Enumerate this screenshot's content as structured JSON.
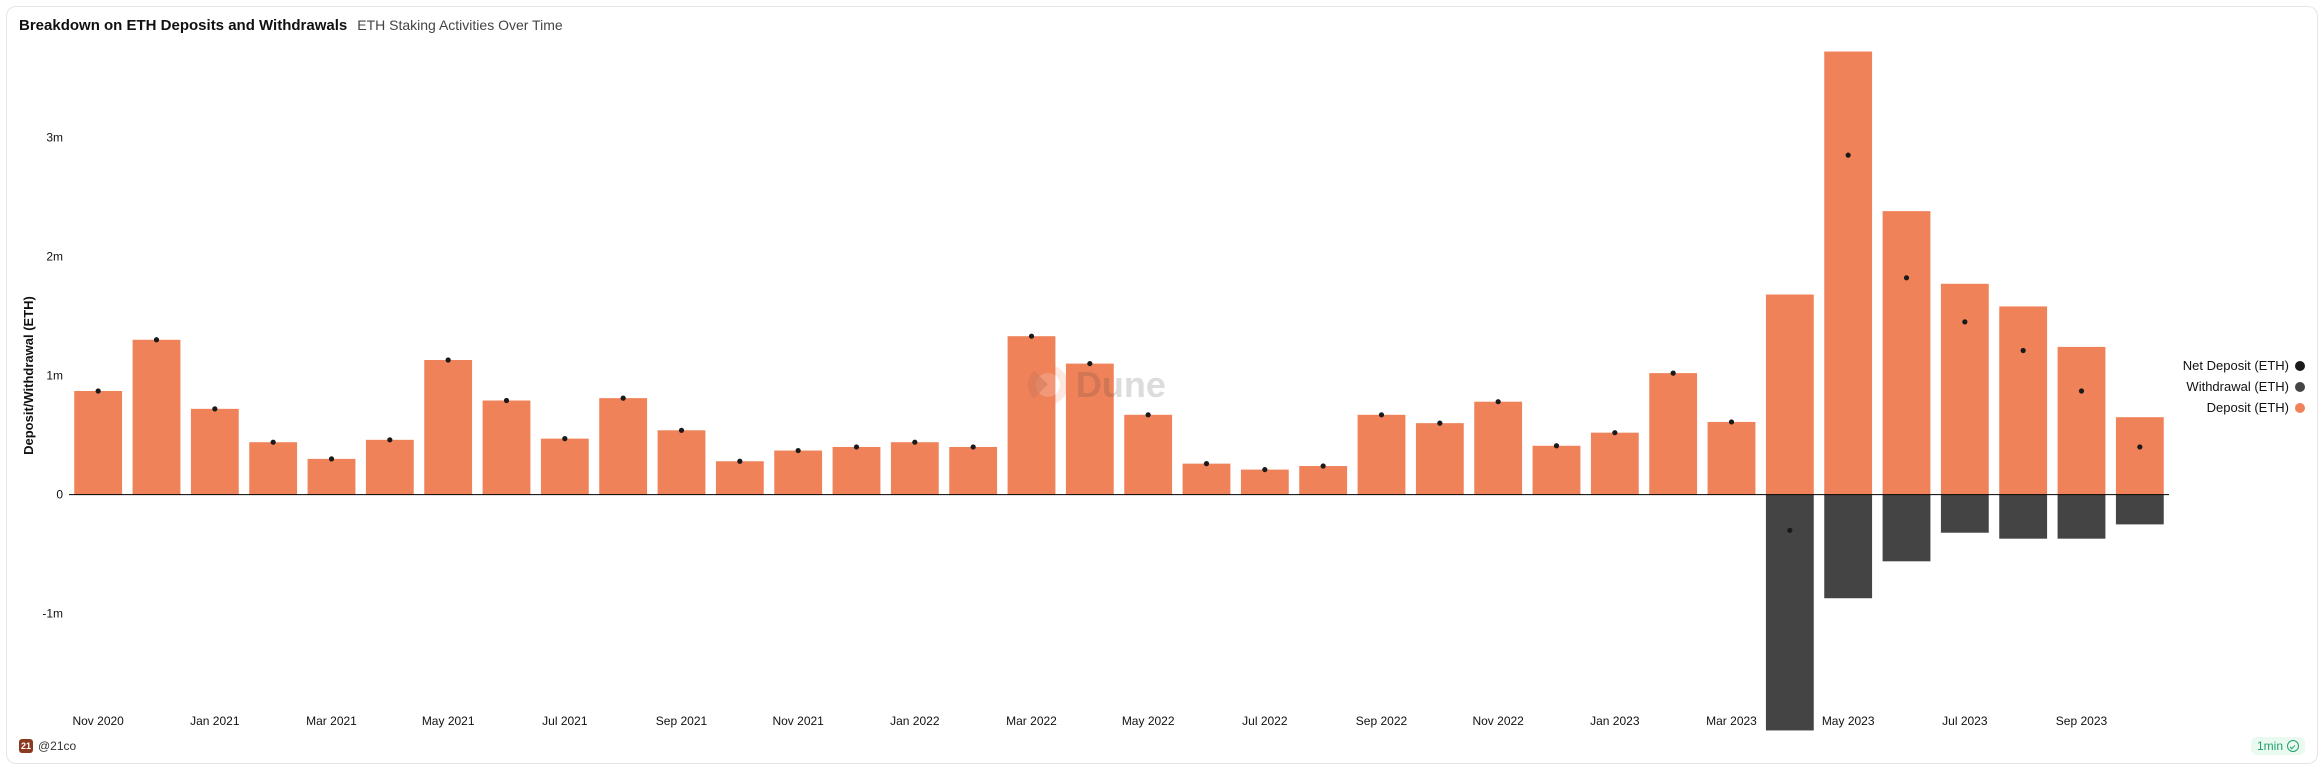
{
  "header": {
    "title": "Breakdown on ETH Deposits and Withdrawals",
    "subtitle": "ETH Staking Activities Over Time"
  },
  "footer": {
    "author_handle": "@21co",
    "author_badge": "21",
    "refresh_label": "1min"
  },
  "watermark": {
    "text": "Dune"
  },
  "legend": {
    "items": [
      {
        "label": "Net Deposit (ETH)",
        "color": "#1a1a1a",
        "shape": "circle"
      },
      {
        "label": "Withdrawal (ETH)",
        "color": "#444444",
        "shape": "circle"
      },
      {
        "label": "Deposit (ETH)",
        "color": "#f0825a",
        "shape": "circle"
      }
    ]
  },
  "chart": {
    "type": "bar+scatter",
    "ylabel": "Deposit/Withdrawal (ETH)",
    "ylim": [
      -1800000,
      3800000
    ],
    "yticks": [
      {
        "v": -1000000,
        "label": "-1m"
      },
      {
        "v": 0,
        "label": "0"
      },
      {
        "v": 1000000,
        "label": "1m"
      },
      {
        "v": 2000000,
        "label": "2m"
      },
      {
        "v": 3000000,
        "label": "3m"
      }
    ],
    "xtick_every": 2,
    "xtick_labels": [
      "Nov 2020",
      "Jan 2021",
      "Mar 2021",
      "May 2021",
      "Jul 2021",
      "Sep 2021",
      "Nov 2021",
      "Jan 2022",
      "Mar 2022",
      "May 2022",
      "Jul 2022",
      "Sep 2022",
      "Nov 2022",
      "Jan 2023",
      "Mar 2023",
      "May 2023",
      "Jul 2023",
      "Sep 2023"
    ],
    "colors": {
      "deposit": "#f0825a",
      "withdrawal": "#444444",
      "net": "#1a1a1a",
      "baseline": "#000000",
      "background": "#ffffff"
    },
    "bar_gap_ratio": 0.18,
    "marker_radius": 2.6,
    "font_size_axis": 12,
    "months": [
      "Nov 2020",
      "Dec 2020",
      "Jan 2021",
      "Feb 2021",
      "Mar 2021",
      "Apr 2021",
      "May 2021",
      "Jun 2021",
      "Jul 2021",
      "Aug 2021",
      "Sep 2021",
      "Oct 2021",
      "Nov 2021",
      "Dec 2021",
      "Jan 2022",
      "Feb 2022",
      "Mar 2022",
      "Apr 2022",
      "May 2022",
      "Jun 2022",
      "Jul 2022",
      "Aug 2022",
      "Sep 2022",
      "Oct 2022",
      "Nov 2022",
      "Dec 2022",
      "Jan 2023",
      "Feb 2023",
      "Mar 2023",
      "Apr 2023",
      "May 2023",
      "Jun 2023",
      "Jul 2023",
      "Aug 2023",
      "Sep 2023",
      "Oct 2023"
    ],
    "deposit": [
      870000,
      1300000,
      720000,
      440000,
      300000,
      460000,
      1130000,
      790000,
      470000,
      810000,
      540000,
      280000,
      370000,
      400000,
      440000,
      400000,
      1330000,
      1100000,
      670000,
      260000,
      210000,
      240000,
      670000,
      600000,
      780000,
      410000,
      520000,
      1020000,
      610000,
      1680000,
      3720000,
      2380000,
      1770000,
      1580000,
      1240000,
      650000
    ],
    "withdrawal": [
      0,
      0,
      0,
      0,
      0,
      0,
      0,
      0,
      0,
      0,
      0,
      0,
      0,
      0,
      0,
      0,
      0,
      0,
      0,
      0,
      0,
      0,
      0,
      0,
      0,
      0,
      0,
      0,
      0,
      -1980000,
      -870000,
      -560000,
      -320000,
      -370000,
      -370000,
      -250000
    ],
    "net": [
      870000,
      1300000,
      720000,
      440000,
      300000,
      460000,
      1130000,
      790000,
      470000,
      810000,
      540000,
      280000,
      370000,
      400000,
      440000,
      400000,
      1330000,
      1100000,
      670000,
      260000,
      210000,
      240000,
      670000,
      600000,
      780000,
      410000,
      520000,
      1020000,
      610000,
      -300000,
      2850000,
      1820000,
      1450000,
      1210000,
      870000,
      400000
    ]
  }
}
